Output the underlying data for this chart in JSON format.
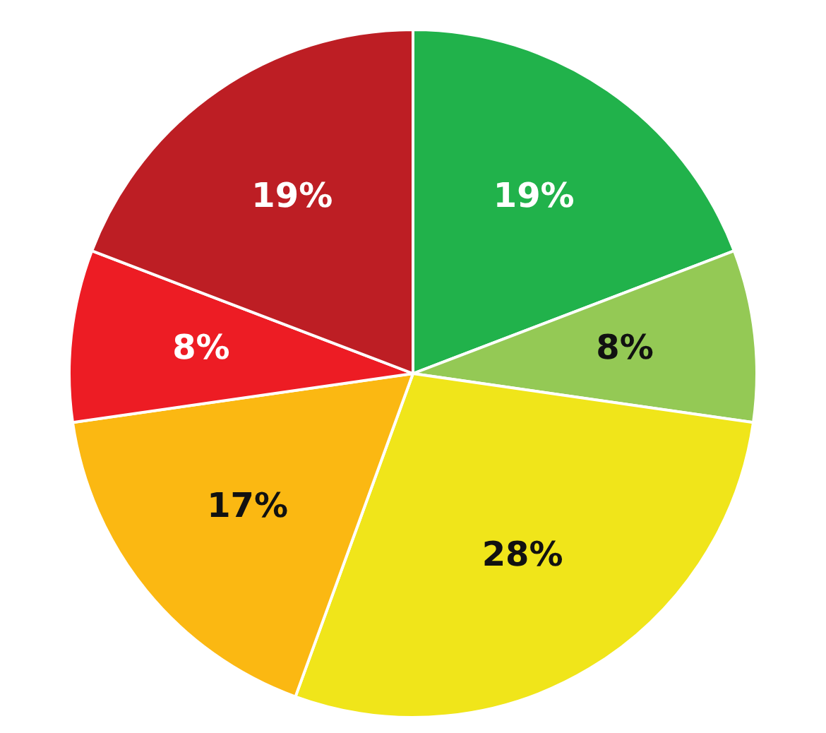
{
  "chart_data": {
    "type": "pie",
    "categories": [
      null,
      null,
      null,
      null,
      null,
      null
    ],
    "values": [
      19,
      8,
      28,
      17,
      8,
      19
    ],
    "value_labels": [
      "19%",
      "8%",
      "28%",
      "17%",
      "8%",
      "19%"
    ],
    "colors": [
      "#21b24b",
      "#94c955",
      "#f0e51a",
      "#fbb812",
      "#ed1c24",
      "#bd1e24"
    ],
    "legend": false
  }
}
